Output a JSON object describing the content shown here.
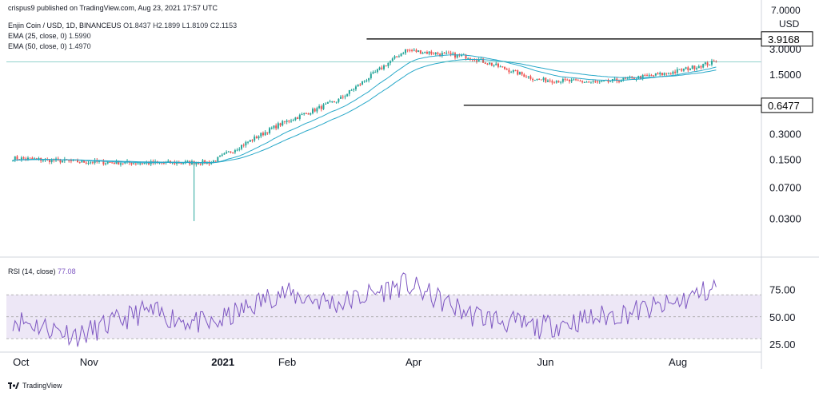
{
  "publisher": "crispus9 published on TradingView.com, Aug 23, 2021 17:57 UTC",
  "symbol_line": "Enjin Coin / USD, 1D, BINANCEUS",
  "ohlc": {
    "o_label": "O",
    "o": "1.8437",
    "h_label": "H",
    "h": "2.1899",
    "l_label": "L",
    "l": "1.8109",
    "c_label": "C",
    "c": "2.1153"
  },
  "ema25": {
    "label": "EMA (25, close, 0)",
    "value": "1.5990"
  },
  "ema50": {
    "label": "EMA (50, close, 0)",
    "value": "1.4970"
  },
  "rsi": {
    "label": "RSI (14, close)",
    "value": "77.08"
  },
  "currency_label": "USD",
  "footer_brand": "TradingView",
  "colors": {
    "up": "#26a69a",
    "down": "#ef5350",
    "ema": "#2aa9c9",
    "rsi_line": "#7e57c2",
    "rsi_band": "#ede7f6",
    "level_line": "#000000"
  },
  "chart_data": [
    {
      "type": "candlestick",
      "title": "Enjin Coin / USD, 1D, BINANCEUS",
      "y_scale": "log",
      "ylabel": "USD",
      "y_ticks": [
        "3.0000",
        "1.5000",
        "0.3000",
        "0.1500",
        "0.0700",
        "0.0300"
      ],
      "x_ticks": [
        "Oct",
        "Nov",
        "2021",
        "Feb",
        "Apr",
        "Jun",
        "Aug"
      ],
      "grid": false,
      "horizontal_levels": [
        {
          "label": "3.9168",
          "value": 3.9168
        },
        {
          "label": "0.6477",
          "value": 0.6477
        }
      ],
      "last_price": 2.1153,
      "series": [
        {
          "name": "Enjin Coin / USD",
          "x": [
            "2020-10-01",
            "2020-11-01",
            "2020-12-01",
            "2021-01-01",
            "2021-02-01",
            "2021-03-01",
            "2021-04-01",
            "2021-05-01",
            "2021-06-01",
            "2021-07-01",
            "2021-08-01",
            "2021-08-23"
          ],
          "close": [
            0.155,
            0.14,
            0.135,
            0.138,
            0.38,
            0.75,
            2.9,
            2.4,
            1.3,
            1.2,
            1.55,
            2.1153
          ],
          "low_extreme": {
            "x": "2020-12-24",
            "value": 0.028
          }
        },
        {
          "name": "EMA (25, close, 0)",
          "last": 1.599
        },
        {
          "name": "EMA (50, close, 0)",
          "last": 1.497
        }
      ]
    },
    {
      "type": "line",
      "title": "RSI (14, close)",
      "y_ticks": [
        "75.00",
        "50.00",
        "25.00"
      ],
      "band": [
        30,
        70
      ],
      "series": [
        {
          "name": "RSI (14, close)",
          "x": [
            "2020-10-01",
            "2020-11-01",
            "2020-12-01",
            "2021-01-01",
            "2021-02-01",
            "2021-03-01",
            "2021-04-01",
            "2021-05-01",
            "2021-06-01",
            "2021-07-01",
            "2021-08-01",
            "2021-08-23"
          ],
          "values": [
            48,
            33,
            55,
            42,
            72,
            62,
            80,
            52,
            40,
            50,
            60,
            77.08
          ]
        }
      ]
    }
  ]
}
